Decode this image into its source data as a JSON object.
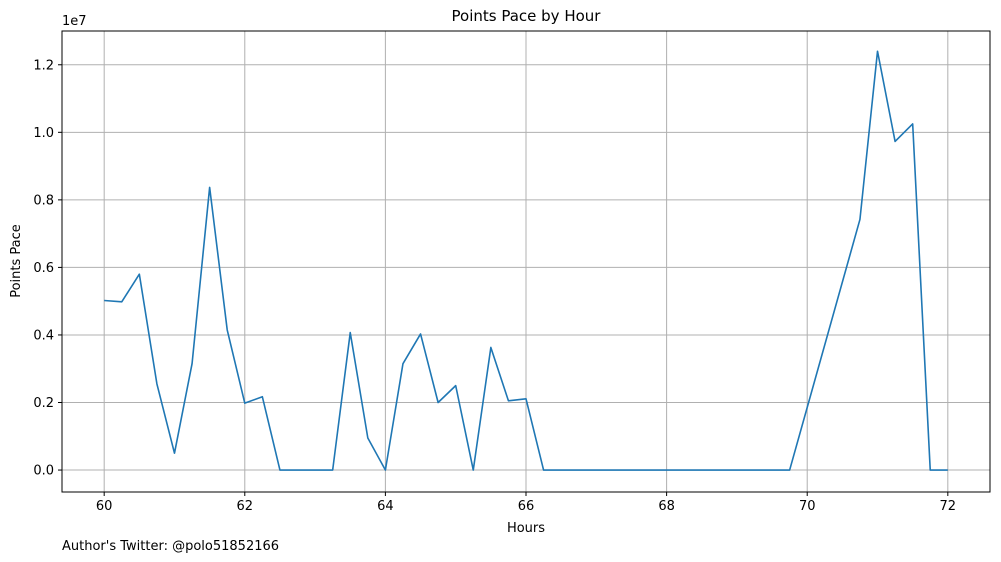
{
  "chart_data": {
    "type": "line",
    "title": "Points Pace by Hour",
    "xlabel": "Hours",
    "ylabel": "Points Pace",
    "y_offset_label": "1e7",
    "xlim": [
      59.4,
      72.6
    ],
    "ylim": [
      -0.065,
      1.3
    ],
    "y_scale_factor": 10000000,
    "grid": true,
    "x_ticks": [
      60,
      62,
      64,
      66,
      68,
      70,
      72
    ],
    "x_tick_labels": [
      "60",
      "62",
      "64",
      "66",
      "68",
      "70",
      "72"
    ],
    "y_ticks": [
      0.0,
      0.2,
      0.4,
      0.6,
      0.8,
      1.0,
      1.2
    ],
    "y_tick_labels": [
      "0.0",
      "0.2",
      "0.4",
      "0.6",
      "0.8",
      "1.0",
      "1.2"
    ],
    "series": [
      {
        "color": "#1f77b4",
        "x": [
          60.0,
          60.25,
          60.5,
          60.75,
          61.0,
          61.25,
          61.5,
          61.75,
          62.0,
          62.25,
          62.5,
          62.75,
          63.0,
          63.25,
          63.5,
          63.75,
          64.0,
          64.25,
          64.5,
          64.75,
          65.0,
          65.25,
          65.5,
          65.75,
          66.0,
          66.25,
          66.5,
          66.75,
          67.0,
          67.25,
          67.5,
          67.75,
          68.0,
          68.25,
          68.5,
          68.75,
          69.0,
          69.25,
          69.5,
          69.75,
          70.75,
          71.0,
          71.25,
          71.5,
          71.75,
          72.0
        ],
        "y": [
          0.502,
          0.498,
          0.58,
          0.255,
          0.05,
          0.315,
          0.837,
          0.415,
          0.198,
          0.217,
          0.0,
          0.0,
          0.0,
          0.0,
          0.407,
          0.095,
          0.0,
          0.315,
          0.403,
          0.2,
          0.25,
          0.0,
          0.363,
          0.205,
          0.211,
          0.0,
          0.0,
          0.0,
          0.0,
          0.0,
          0.0,
          0.0,
          0.0,
          0.0,
          0.0,
          0.0,
          0.0,
          0.0,
          0.0,
          0.0,
          0.742,
          1.24,
          0.973,
          1.025,
          0.0,
          0.0
        ]
      }
    ]
  },
  "footer": {
    "credit": "Author's Twitter: @polo51852166"
  }
}
